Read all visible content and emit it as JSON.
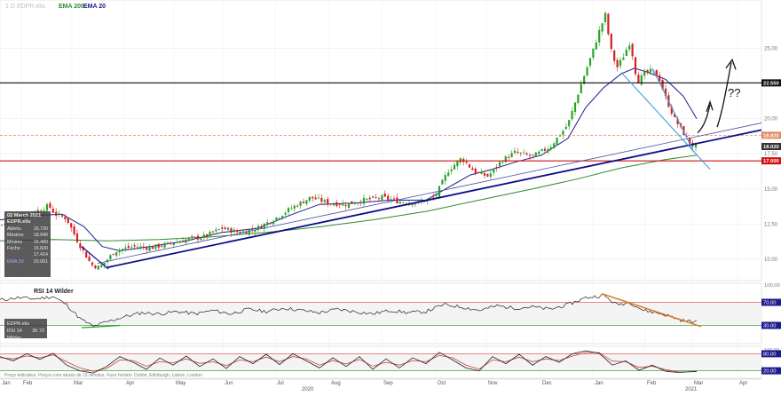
{
  "header": {
    "timeframe": "1 D",
    "symbol": "EDPR.elis",
    "ema200_label": "EMA 200",
    "ema20_label": "EMA 20"
  },
  "colors": {
    "up": "#27a327",
    "down": "#d32020",
    "ema200": "#2e8b2e",
    "ema20": "#1c1c8c",
    "trend": "#0d0d8a",
    "resist": "#111111",
    "support": "#d01010",
    "wedge": "#3aa0e0",
    "rsi_trend": "#e07a20"
  },
  "info_box": {
    "date": "02 March 2021",
    "symbol": "EDPR.elis",
    "rows": [
      {
        "label": "Abertu",
        "value": "16.720"
      },
      {
        "label": "Máximo",
        "value": "18.940"
      },
      {
        "label": "Mínimo",
        "value": "16.460"
      },
      {
        "label": "Fecho",
        "value": "16.820"
      },
      {
        "label": "",
        "value": "17.414"
      },
      {
        "label": "EMA 20",
        "value": "20.061"
      }
    ]
  },
  "rsi_box": {
    "symbol": "EDPR.elis",
    "label": "RSI 14 Wilder",
    "value": "36.72"
  },
  "rsi_label": "RSI 14 Wilder",
  "annotation": "??",
  "footer": "Preço indicativo. Preços com atraso de 15 minutos. Fuso horário: Dublin, Edinburgh, Lisbon, London",
  "chart_data": [
    {
      "type": "line",
      "title": "",
      "y_ticks": [
        10,
        12.5,
        15,
        17.5,
        20,
        22.5,
        25
      ],
      "y_tick_labels": [
        "10.00",
        "12.50",
        "15.00",
        "17.50",
        "20.00",
        "22.50",
        "25.00"
      ],
      "price_labels": [
        {
          "value": 22.55,
          "text": "22.550",
          "color": "#111111"
        },
        {
          "value": 18.82,
          "text": "18.820",
          "color": "#e08a60"
        },
        {
          "value": 18.02,
          "text": "18.020",
          "color": "#333333"
        },
        {
          "value": 17.0,
          "text": "17.000",
          "color": "#d01010"
        }
      ],
      "x_labels": [
        "Jan",
        "Feb",
        "Mar",
        "Apr",
        "May",
        "Jun",
        "Jul",
        "Aug",
        "Sep",
        "Oct",
        "Nov",
        "Dec",
        "Jan",
        "Feb",
        "Mar",
        "Apr"
      ],
      "year_labels": [
        "2020",
        "2021"
      ],
      "ylim": [
        8.6,
        28.2
      ],
      "price_close": [
        {
          "x": 0,
          "y": 12.4
        },
        {
          "x": 20,
          "y": 12.9
        },
        {
          "x": 40,
          "y": 13.4
        },
        {
          "x": 55,
          "y": 13.8
        },
        {
          "x": 62,
          "y": 13.2
        },
        {
          "x": 75,
          "y": 12.9
        },
        {
          "x": 88,
          "y": 11.2
        },
        {
          "x": 103,
          "y": 9.6
        },
        {
          "x": 112,
          "y": 9.4
        },
        {
          "x": 120,
          "y": 9.9
        },
        {
          "x": 130,
          "y": 10.6
        },
        {
          "x": 150,
          "y": 10.9
        },
        {
          "x": 170,
          "y": 10.8
        },
        {
          "x": 190,
          "y": 11.1
        },
        {
          "x": 210,
          "y": 11.4
        },
        {
          "x": 230,
          "y": 11.6
        },
        {
          "x": 250,
          "y": 12.2
        },
        {
          "x": 270,
          "y": 11.9
        },
        {
          "x": 290,
          "y": 12.2
        },
        {
          "x": 310,
          "y": 12.9
        },
        {
          "x": 330,
          "y": 13.7
        },
        {
          "x": 350,
          "y": 14.4
        },
        {
          "x": 370,
          "y": 14.0
        },
        {
          "x": 390,
          "y": 13.9
        },
        {
          "x": 410,
          "y": 14.2
        },
        {
          "x": 430,
          "y": 14.4
        },
        {
          "x": 450,
          "y": 14.1
        },
        {
          "x": 470,
          "y": 14.0
        },
        {
          "x": 490,
          "y": 14.4
        },
        {
          "x": 505,
          "y": 16.3
        },
        {
          "x": 520,
          "y": 17.2
        },
        {
          "x": 535,
          "y": 16.2
        },
        {
          "x": 550,
          "y": 15.9
        },
        {
          "x": 565,
          "y": 17.0
        },
        {
          "x": 580,
          "y": 17.6
        },
        {
          "x": 600,
          "y": 17.3
        },
        {
          "x": 620,
          "y": 18.0
        },
        {
          "x": 640,
          "y": 19.6
        },
        {
          "x": 655,
          "y": 22.5
        },
        {
          "x": 668,
          "y": 24.8
        },
        {
          "x": 675,
          "y": 26.2
        },
        {
          "x": 682,
          "y": 27.4
        },
        {
          "x": 688,
          "y": 25.0
        },
        {
          "x": 695,
          "y": 23.6
        },
        {
          "x": 702,
          "y": 24.4
        },
        {
          "x": 710,
          "y": 25.5
        },
        {
          "x": 718,
          "y": 22.6
        },
        {
          "x": 726,
          "y": 23.2
        },
        {
          "x": 734,
          "y": 23.4
        },
        {
          "x": 742,
          "y": 23.0
        },
        {
          "x": 750,
          "y": 21.5
        },
        {
          "x": 760,
          "y": 20.0
        },
        {
          "x": 770,
          "y": 19.0
        },
        {
          "x": 778,
          "y": 18.2
        },
        {
          "x": 785,
          "y": 18.0
        }
      ],
      "ema20": [
        {
          "x": 0,
          "y": 12.8
        },
        {
          "x": 40,
          "y": 13.1
        },
        {
          "x": 70,
          "y": 13.2
        },
        {
          "x": 95,
          "y": 12.3
        },
        {
          "x": 115,
          "y": 10.9
        },
        {
          "x": 135,
          "y": 10.6
        },
        {
          "x": 170,
          "y": 10.9
        },
        {
          "x": 210,
          "y": 11.3
        },
        {
          "x": 250,
          "y": 11.9
        },
        {
          "x": 290,
          "y": 12.2
        },
        {
          "x": 330,
          "y": 13.2
        },
        {
          "x": 360,
          "y": 13.9
        },
        {
          "x": 400,
          "y": 14.0
        },
        {
          "x": 440,
          "y": 14.2
        },
        {
          "x": 480,
          "y": 14.2
        },
        {
          "x": 505,
          "y": 15.1
        },
        {
          "x": 530,
          "y": 16.0
        },
        {
          "x": 555,
          "y": 16.4
        },
        {
          "x": 580,
          "y": 16.9
        },
        {
          "x": 610,
          "y": 17.4
        },
        {
          "x": 640,
          "y": 18.6
        },
        {
          "x": 660,
          "y": 20.8
        },
        {
          "x": 680,
          "y": 22.2
        },
        {
          "x": 700,
          "y": 23.2
        },
        {
          "x": 715,
          "y": 23.6
        },
        {
          "x": 730,
          "y": 23.3
        },
        {
          "x": 750,
          "y": 22.8
        },
        {
          "x": 770,
          "y": 21.6
        },
        {
          "x": 785,
          "y": 20.0
        }
      ],
      "ema200": [
        {
          "x": 0,
          "y": 11.3
        },
        {
          "x": 60,
          "y": 11.4
        },
        {
          "x": 120,
          "y": 11.3
        },
        {
          "x": 180,
          "y": 11.4
        },
        {
          "x": 240,
          "y": 11.6
        },
        {
          "x": 300,
          "y": 11.9
        },
        {
          "x": 360,
          "y": 12.3
        },
        {
          "x": 420,
          "y": 12.8
        },
        {
          "x": 480,
          "y": 13.4
        },
        {
          "x": 540,
          "y": 14.2
        },
        {
          "x": 600,
          "y": 15.0
        },
        {
          "x": 650,
          "y": 15.7
        },
        {
          "x": 700,
          "y": 16.5
        },
        {
          "x": 750,
          "y": 17.1
        },
        {
          "x": 785,
          "y": 17.4
        }
      ]
    },
    {
      "type": "line",
      "title": "RSI 14 Wilder",
      "ylim": [
        0,
        100
      ],
      "y_ticks": [
        30,
        70,
        100
      ],
      "y_tick_labels": [
        "30.00",
        "70.00",
        "100.00"
      ],
      "rsi": [
        {
          "x": 0,
          "y": 74
        },
        {
          "x": 20,
          "y": 78
        },
        {
          "x": 40,
          "y": 76
        },
        {
          "x": 60,
          "y": 80
        },
        {
          "x": 75,
          "y": 66
        },
        {
          "x": 90,
          "y": 42
        },
        {
          "x": 105,
          "y": 28
        },
        {
          "x": 120,
          "y": 36
        },
        {
          "x": 140,
          "y": 45
        },
        {
          "x": 160,
          "y": 52
        },
        {
          "x": 180,
          "y": 50
        },
        {
          "x": 200,
          "y": 54
        },
        {
          "x": 220,
          "y": 50
        },
        {
          "x": 240,
          "y": 56
        },
        {
          "x": 260,
          "y": 50
        },
        {
          "x": 280,
          "y": 58
        },
        {
          "x": 300,
          "y": 54
        },
        {
          "x": 320,
          "y": 60
        },
        {
          "x": 340,
          "y": 56
        },
        {
          "x": 360,
          "y": 52
        },
        {
          "x": 380,
          "y": 58
        },
        {
          "x": 400,
          "y": 54
        },
        {
          "x": 420,
          "y": 50
        },
        {
          "x": 440,
          "y": 56
        },
        {
          "x": 460,
          "y": 52
        },
        {
          "x": 480,
          "y": 54
        },
        {
          "x": 500,
          "y": 66
        },
        {
          "x": 520,
          "y": 62
        },
        {
          "x": 540,
          "y": 56
        },
        {
          "x": 560,
          "y": 64
        },
        {
          "x": 580,
          "y": 60
        },
        {
          "x": 600,
          "y": 62
        },
        {
          "x": 620,
          "y": 58
        },
        {
          "x": 640,
          "y": 66
        },
        {
          "x": 660,
          "y": 78
        },
        {
          "x": 680,
          "y": 82
        },
        {
          "x": 695,
          "y": 66
        },
        {
          "x": 710,
          "y": 70
        },
        {
          "x": 725,
          "y": 56
        },
        {
          "x": 740,
          "y": 52
        },
        {
          "x": 755,
          "y": 46
        },
        {
          "x": 770,
          "y": 38
        },
        {
          "x": 785,
          "y": 36
        }
      ]
    },
    {
      "type": "line",
      "title": "",
      "ylim": [
        0,
        100
      ],
      "y_ticks": [
        20,
        80,
        100
      ],
      "y_tick_labels": [
        "20.00",
        "80.00",
        "100.00"
      ],
      "stoch_k": [
        {
          "x": 0,
          "y": 70
        },
        {
          "x": 15,
          "y": 55
        },
        {
          "x": 30,
          "y": 80
        },
        {
          "x": 45,
          "y": 60
        },
        {
          "x": 60,
          "y": 82
        },
        {
          "x": 75,
          "y": 40
        },
        {
          "x": 90,
          "y": 20
        },
        {
          "x": 105,
          "y": 12
        },
        {
          "x": 120,
          "y": 35
        },
        {
          "x": 135,
          "y": 70
        },
        {
          "x": 150,
          "y": 50
        },
        {
          "x": 165,
          "y": 25
        },
        {
          "x": 180,
          "y": 65
        },
        {
          "x": 195,
          "y": 40
        },
        {
          "x": 210,
          "y": 72
        },
        {
          "x": 225,
          "y": 35
        },
        {
          "x": 240,
          "y": 62
        },
        {
          "x": 255,
          "y": 28
        },
        {
          "x": 270,
          "y": 70
        },
        {
          "x": 285,
          "y": 45
        },
        {
          "x": 300,
          "y": 78
        },
        {
          "x": 315,
          "y": 42
        },
        {
          "x": 330,
          "y": 80
        },
        {
          "x": 345,
          "y": 55
        },
        {
          "x": 360,
          "y": 30
        },
        {
          "x": 375,
          "y": 66
        },
        {
          "x": 390,
          "y": 35
        },
        {
          "x": 405,
          "y": 70
        },
        {
          "x": 420,
          "y": 25
        },
        {
          "x": 435,
          "y": 62
        },
        {
          "x": 450,
          "y": 30
        },
        {
          "x": 465,
          "y": 66
        },
        {
          "x": 480,
          "y": 45
        },
        {
          "x": 495,
          "y": 85
        },
        {
          "x": 510,
          "y": 58
        },
        {
          "x": 525,
          "y": 30
        },
        {
          "x": 540,
          "y": 20
        },
        {
          "x": 555,
          "y": 70
        },
        {
          "x": 570,
          "y": 45
        },
        {
          "x": 585,
          "y": 78
        },
        {
          "x": 600,
          "y": 40
        },
        {
          "x": 615,
          "y": 70
        },
        {
          "x": 630,
          "y": 50
        },
        {
          "x": 645,
          "y": 80
        },
        {
          "x": 660,
          "y": 90
        },
        {
          "x": 675,
          "y": 82
        },
        {
          "x": 690,
          "y": 40
        },
        {
          "x": 705,
          "y": 55
        },
        {
          "x": 720,
          "y": 22
        },
        {
          "x": 735,
          "y": 40
        },
        {
          "x": 750,
          "y": 18
        },
        {
          "x": 765,
          "y": 14
        },
        {
          "x": 785,
          "y": 18
        }
      ],
      "stoch_d": [
        {
          "x": 0,
          "y": 66
        },
        {
          "x": 15,
          "y": 62
        },
        {
          "x": 30,
          "y": 72
        },
        {
          "x": 45,
          "y": 66
        },
        {
          "x": 60,
          "y": 76
        },
        {
          "x": 75,
          "y": 52
        },
        {
          "x": 90,
          "y": 30
        },
        {
          "x": 105,
          "y": 18
        },
        {
          "x": 120,
          "y": 28
        },
        {
          "x": 135,
          "y": 58
        },
        {
          "x": 150,
          "y": 56
        },
        {
          "x": 165,
          "y": 36
        },
        {
          "x": 180,
          "y": 52
        },
        {
          "x": 195,
          "y": 48
        },
        {
          "x": 210,
          "y": 62
        },
        {
          "x": 225,
          "y": 46
        },
        {
          "x": 240,
          "y": 52
        },
        {
          "x": 255,
          "y": 38
        },
        {
          "x": 270,
          "y": 58
        },
        {
          "x": 285,
          "y": 52
        },
        {
          "x": 300,
          "y": 68
        },
        {
          "x": 315,
          "y": 52
        },
        {
          "x": 330,
          "y": 70
        },
        {
          "x": 345,
          "y": 62
        },
        {
          "x": 360,
          "y": 40
        },
        {
          "x": 375,
          "y": 56
        },
        {
          "x": 390,
          "y": 44
        },
        {
          "x": 405,
          "y": 60
        },
        {
          "x": 420,
          "y": 36
        },
        {
          "x": 435,
          "y": 50
        },
        {
          "x": 450,
          "y": 40
        },
        {
          "x": 465,
          "y": 56
        },
        {
          "x": 480,
          "y": 52
        },
        {
          "x": 495,
          "y": 74
        },
        {
          "x": 510,
          "y": 66
        },
        {
          "x": 525,
          "y": 40
        },
        {
          "x": 540,
          "y": 26
        },
        {
          "x": 555,
          "y": 58
        },
        {
          "x": 570,
          "y": 52
        },
        {
          "x": 585,
          "y": 68
        },
        {
          "x": 600,
          "y": 52
        },
        {
          "x": 615,
          "y": 62
        },
        {
          "x": 630,
          "y": 56
        },
        {
          "x": 645,
          "y": 72
        },
        {
          "x": 660,
          "y": 84
        },
        {
          "x": 675,
          "y": 84
        },
        {
          "x": 690,
          "y": 54
        },
        {
          "x": 705,
          "y": 52
        },
        {
          "x": 720,
          "y": 32
        },
        {
          "x": 735,
          "y": 36
        },
        {
          "x": 750,
          "y": 24
        },
        {
          "x": 765,
          "y": 16
        },
        {
          "x": 785,
          "y": 17
        }
      ]
    }
  ]
}
